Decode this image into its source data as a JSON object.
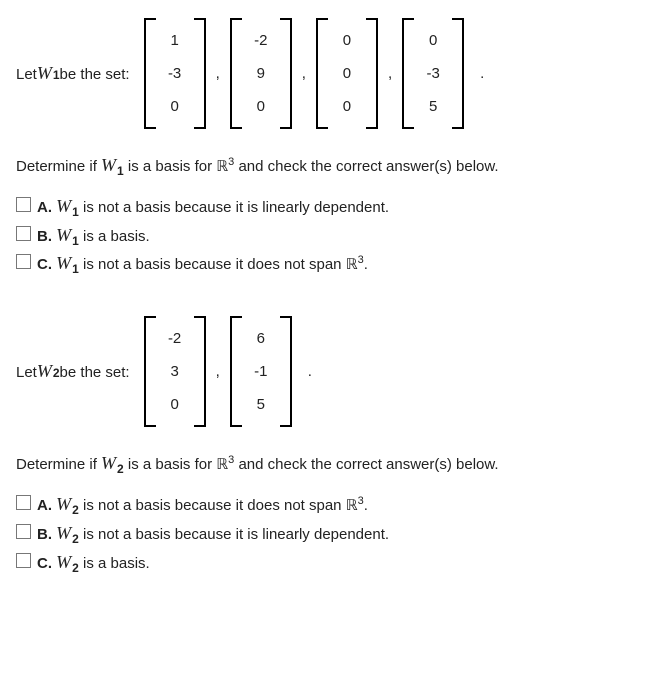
{
  "q1": {
    "labelPrefix": "Let ",
    "var": "W",
    "sub": "1",
    "labelSuffix": " be the set:",
    "vectors": [
      [
        "1",
        "-3",
        "0"
      ],
      [
        "-2",
        "9",
        "0"
      ],
      [
        "0",
        "0",
        "0"
      ],
      [
        "0",
        "-3",
        "5"
      ]
    ],
    "sep": ",",
    "period": "."
  },
  "p1": {
    "pre": "Determine if ",
    "var": "W",
    "sub": "1",
    "mid": " is a basis for ",
    "R": "ℝ",
    "exp": "3",
    "post": " and check the correct answer(s) below."
  },
  "opts1": {
    "A": {
      "letter": "A.",
      "pre_var": " ",
      "var": "W",
      "sub": "1",
      "text": " is not a basis because it is linearly dependent."
    },
    "B": {
      "letter": "B.",
      "pre_var": " ",
      "var": "W",
      "sub": "1",
      "text": " is a basis."
    },
    "C": {
      "letter": "C.",
      "pre_var": " ",
      "var": "W",
      "sub": "1",
      "text": " is not a basis because it does not span ",
      "R": "ℝ",
      "exp": "3",
      "tail": "."
    }
  },
  "q2": {
    "labelPrefix": "Let ",
    "var": "W",
    "sub": "2",
    "labelSuffix": " be the set:",
    "vectors": [
      [
        "-2",
        "3",
        "0"
      ],
      [
        "6",
        "-1",
        "5"
      ]
    ],
    "sep": ",",
    "period": "."
  },
  "p2": {
    "pre": "Determine if ",
    "var": "W",
    "sub": "2",
    "mid": " is a basis for ",
    "R": "ℝ",
    "exp": "3",
    "post": " and check the correct answer(s) below."
  },
  "opts2": {
    "A": {
      "letter": "A.",
      "pre_var": " ",
      "var": "W",
      "sub": "2",
      "text": " is not a basis because it does not span ",
      "R": "ℝ",
      "exp": "3",
      "tail": "."
    },
    "B": {
      "letter": "B.",
      "pre_var": " ",
      "var": "W",
      "sub": "2",
      "text": " is not a basis because it is linearly dependent."
    },
    "C": {
      "letter": "C.",
      "pre_var": " ",
      "var": "W",
      "sub": "2",
      "text": " is a basis."
    }
  }
}
